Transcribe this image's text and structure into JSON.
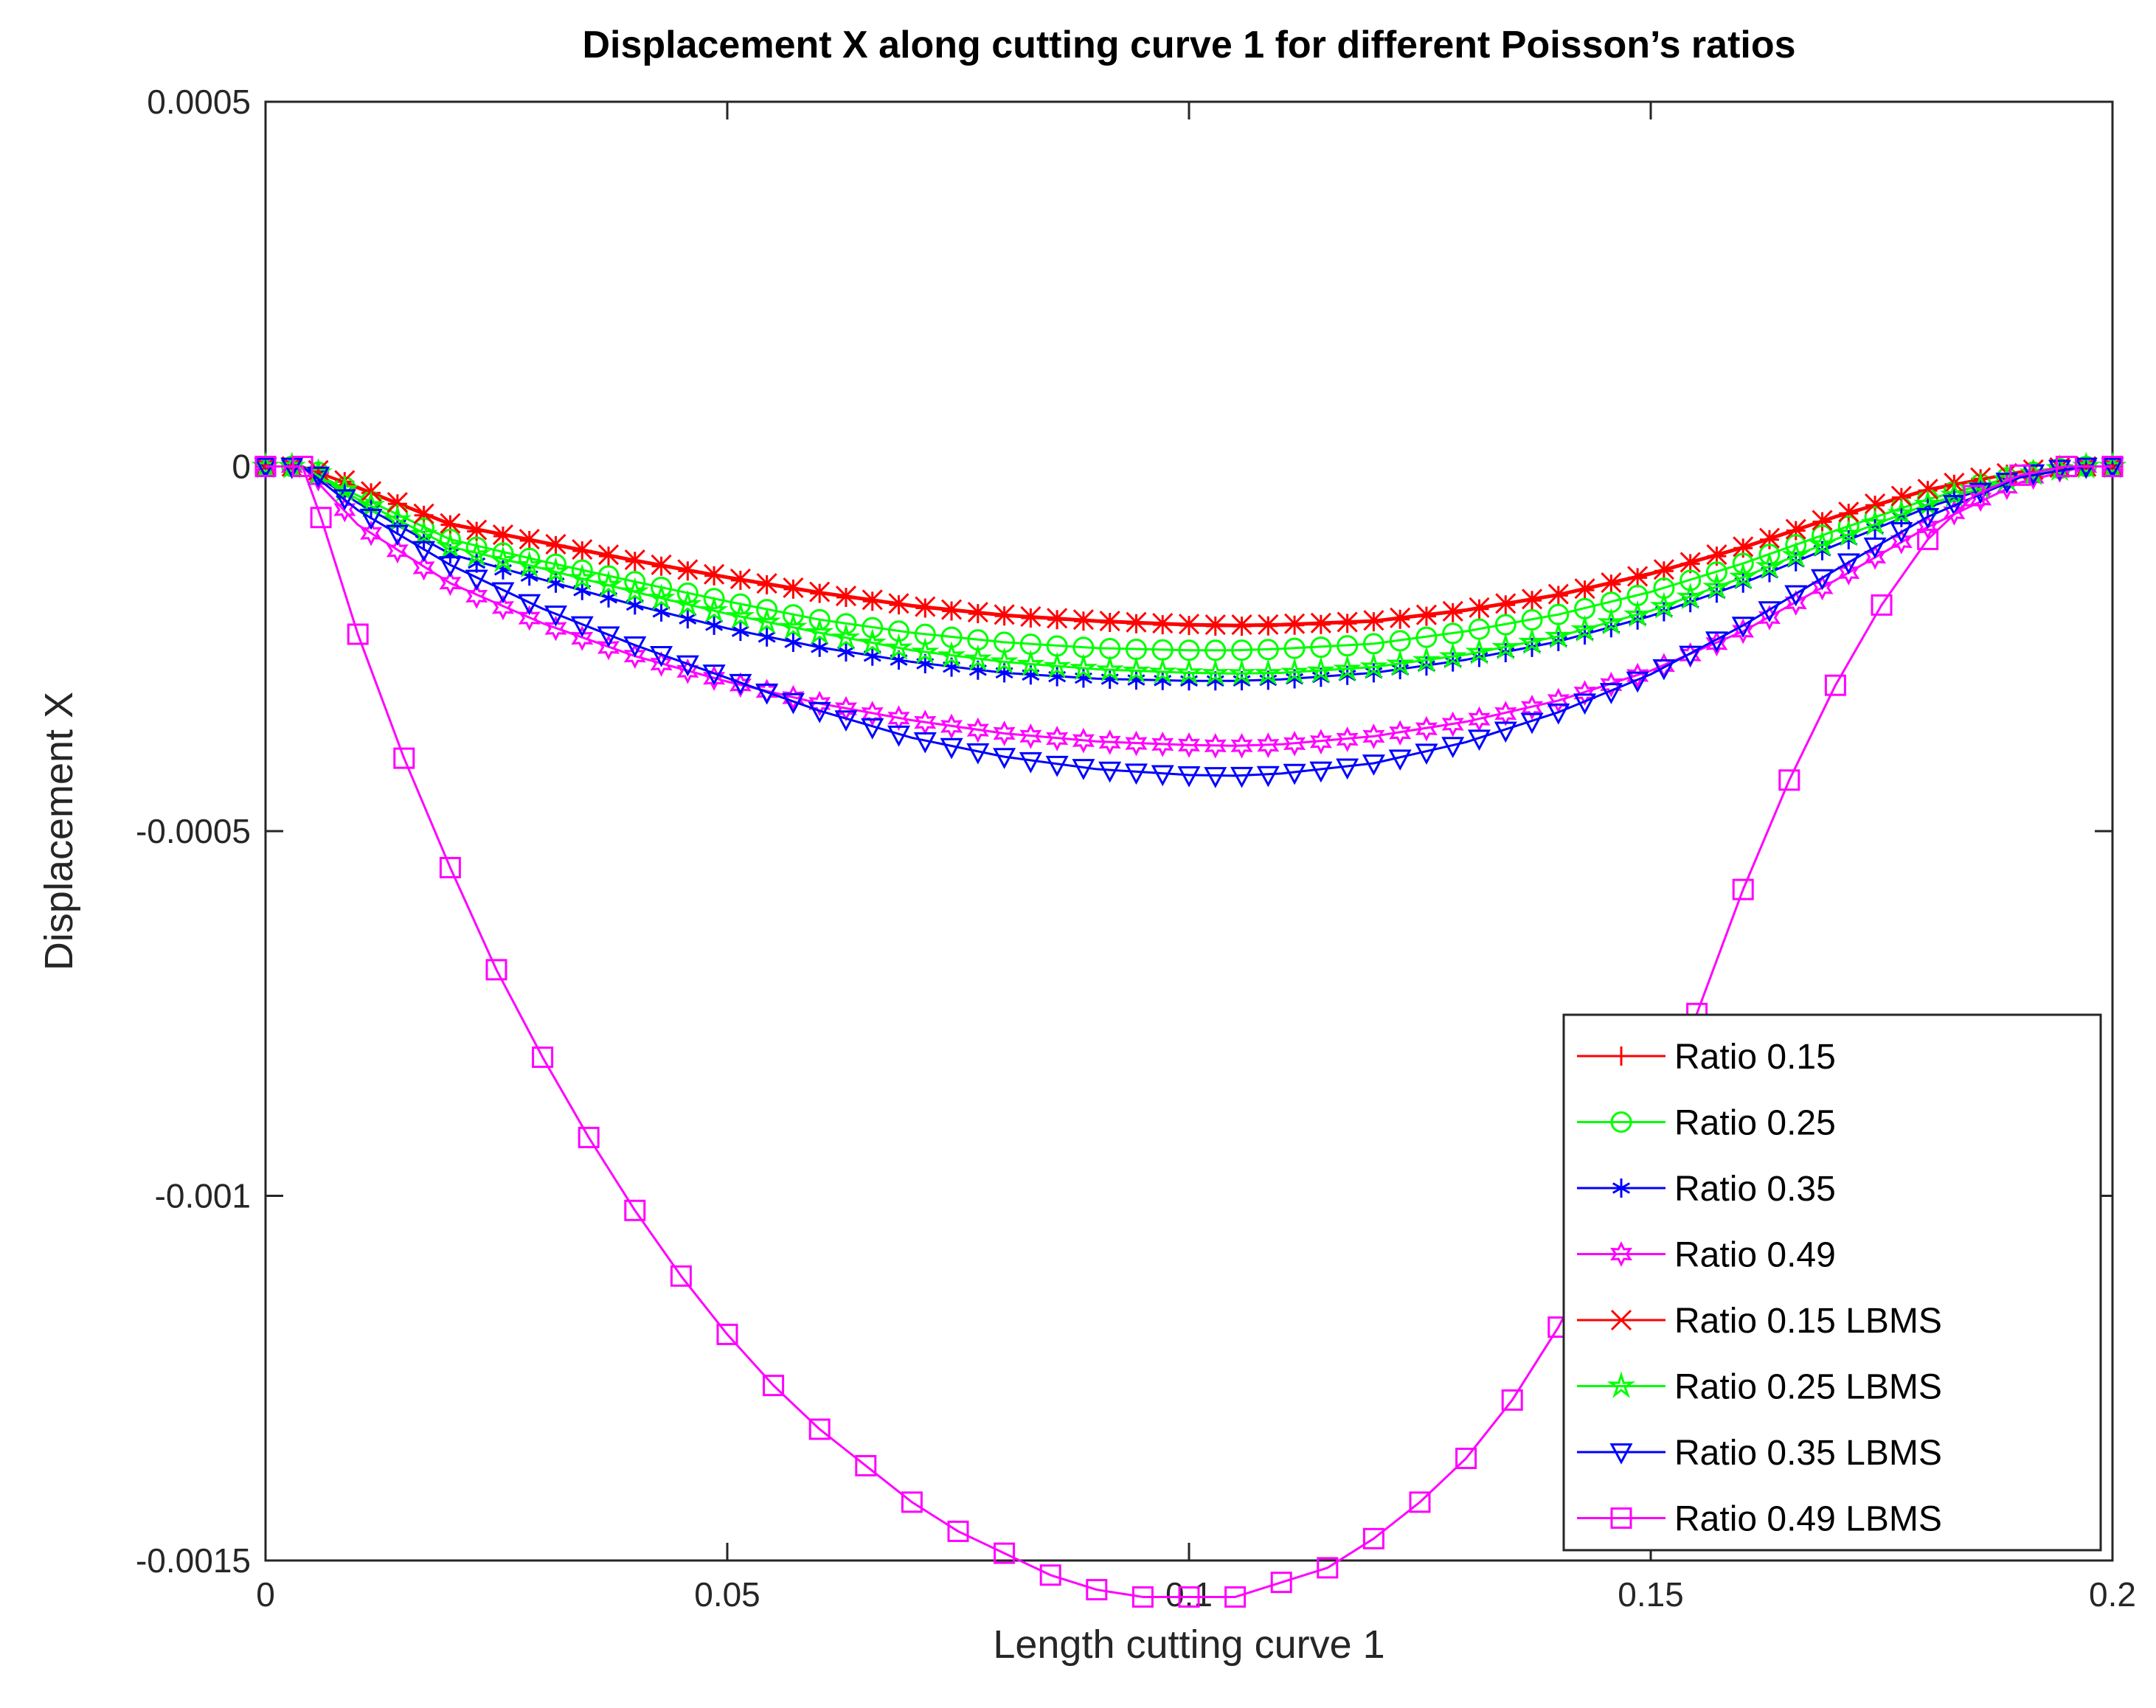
{
  "chart_data": {
    "type": "line",
    "title": "Displacement X along cutting curve 1 for different Poisson’s ratios",
    "xlabel": "Length cutting curve 1",
    "ylabel": "Displacement X",
    "xlim": [
      0,
      0.2
    ],
    "ylim": [
      -0.0015,
      0.0005
    ],
    "xticks": [
      0,
      0.05,
      0.1,
      0.15,
      0.2
    ],
    "xtick_labels": [
      "0",
      "0.05",
      "0.1",
      "0.15",
      "0.2"
    ],
    "yticks": [
      0.0005,
      0,
      -0.0005,
      -0.001,
      -0.0015
    ],
    "ytick_labels": [
      "0.0005",
      "0",
      "-0.0005",
      "-0.001",
      "-0.0015"
    ],
    "grid": false,
    "legend_position": "bottom-right",
    "series": [
      {
        "name": "Ratio 0.15",
        "color": "#ff0000",
        "marker": "plus",
        "x": [
          0,
          0.004,
          0.01,
          0.02,
          0.03,
          0.04,
          0.05,
          0.06,
          0.07,
          0.08,
          0.09,
          0.1,
          0.105,
          0.11,
          0.12,
          0.13,
          0.14,
          0.15,
          0.16,
          0.17,
          0.18,
          0.19,
          0.197,
          0.2
        ],
        "y": [
          0,
          0,
          -3e-05,
          -8e-05,
          -0.000105,
          -0.00013,
          -0.000153,
          -0.000174,
          -0.000192,
          -0.000205,
          -0.000213,
          -0.000218,
          -0.000219,
          -0.000218,
          -0.000213,
          -0.000198,
          -0.000177,
          -0.000148,
          -0.000112,
          -7e-05,
          -3.3e-05,
          -8e-06,
          0,
          0
        ]
      },
      {
        "name": "Ratio 0.25",
        "color": "#00ff00",
        "marker": "circle",
        "x": [
          0,
          0.004,
          0.01,
          0.02,
          0.03,
          0.04,
          0.05,
          0.06,
          0.07,
          0.08,
          0.09,
          0.1,
          0.105,
          0.11,
          0.12,
          0.13,
          0.14,
          0.15,
          0.16,
          0.17,
          0.18,
          0.19,
          0.197,
          0.2
        ],
        "y": [
          0,
          0,
          -4e-05,
          -0.0001,
          -0.00013,
          -0.000158,
          -0.000185,
          -0.00021,
          -0.000228,
          -0.000241,
          -0.000249,
          -0.000252,
          -0.000252,
          -0.00025,
          -0.000243,
          -0.000226,
          -0.000203,
          -0.000172,
          -0.000133,
          -8.8e-05,
          -4.5e-05,
          -1.2e-05,
          0,
          0
        ]
      },
      {
        "name": "Ratio 0.35",
        "color": "#0000ff",
        "marker": "asterisk",
        "x": [
          0,
          0.004,
          0.01,
          0.02,
          0.03,
          0.04,
          0.05,
          0.06,
          0.07,
          0.08,
          0.09,
          0.1,
          0.105,
          0.11,
          0.12,
          0.13,
          0.14,
          0.15,
          0.16,
          0.17,
          0.18,
          0.19,
          0.197,
          0.2
        ],
        "y": [
          0,
          0,
          -5e-05,
          -0.00012,
          -0.000155,
          -0.00019,
          -0.000222,
          -0.000248,
          -0.000268,
          -0.000283,
          -0.000291,
          -0.000294,
          -0.000294,
          -0.000292,
          -0.000283,
          -0.000265,
          -0.00024,
          -0.000205,
          -0.00016,
          -0.000108,
          -5.6e-05,
          -1.5e-05,
          0,
          0
        ]
      },
      {
        "name": "Ratio 0.49",
        "color": "#ff00ff",
        "marker": "hexagram",
        "x": [
          0,
          0.004,
          0.01,
          0.02,
          0.03,
          0.04,
          0.05,
          0.06,
          0.07,
          0.08,
          0.09,
          0.1,
          0.105,
          0.11,
          0.12,
          0.13,
          0.14,
          0.15,
          0.16,
          0.17,
          0.18,
          0.19,
          0.197,
          0.2
        ],
        "y": [
          0,
          0,
          -8e-05,
          -0.00016,
          -0.000215,
          -0.00026,
          -0.000295,
          -0.000325,
          -0.000348,
          -0.000366,
          -0.000377,
          -0.000382,
          -0.000383,
          -0.000381,
          -0.00037,
          -0.00035,
          -0.000321,
          -0.00028,
          -0.000226,
          -0.000156,
          -8.3e-05,
          -2.2e-05,
          0,
          0
        ]
      },
      {
        "name": "Ratio 0.15 LBMS",
        "color": "#ff0000",
        "marker": "x",
        "x": [
          0,
          0.004,
          0.01,
          0.02,
          0.03,
          0.04,
          0.05,
          0.06,
          0.07,
          0.08,
          0.09,
          0.1,
          0.105,
          0.11,
          0.12,
          0.13,
          0.14,
          0.15,
          0.16,
          0.17,
          0.18,
          0.19,
          0.197,
          0.2
        ],
        "y": [
          0,
          0,
          -2.8e-05,
          -7.8e-05,
          -0.000103,
          -0.000128,
          -0.000151,
          -0.000172,
          -0.00019,
          -0.000203,
          -0.000211,
          -0.000216,
          -0.000217,
          -0.000216,
          -0.000211,
          -0.000196,
          -0.000175,
          -0.000146,
          -0.00011,
          -6.8e-05,
          -3.1e-05,
          -7e-06,
          0,
          0
        ]
      },
      {
        "name": "Ratio 0.25 LBMS",
        "color": "#00ff00",
        "marker": "pentagram",
        "x": [
          0,
          0.004,
          0.01,
          0.02,
          0.03,
          0.04,
          0.05,
          0.06,
          0.07,
          0.08,
          0.09,
          0.1,
          0.105,
          0.11,
          0.12,
          0.13,
          0.14,
          0.15,
          0.16,
          0.17,
          0.18,
          0.19,
          0.197,
          0.2
        ],
        "y": [
          0,
          0,
          -4.5e-05,
          -0.00011,
          -0.00014,
          -0.000172,
          -0.000202,
          -0.000228,
          -0.000252,
          -0.000268,
          -0.000278,
          -0.000283,
          -0.000284,
          -0.000283,
          -0.000275,
          -0.000258,
          -0.000233,
          -0.000198,
          -0.000152,
          -0.0001,
          -5.2e-05,
          -1.4e-05,
          0,
          0
        ]
      },
      {
        "name": "Ratio 0.35 LBMS",
        "color": "#0000ff",
        "marker": "triangle-down",
        "x": [
          0,
          0.004,
          0.01,
          0.02,
          0.03,
          0.04,
          0.05,
          0.06,
          0.07,
          0.08,
          0.09,
          0.1,
          0.105,
          0.11,
          0.12,
          0.13,
          0.14,
          0.15,
          0.16,
          0.17,
          0.18,
          0.19,
          0.197,
          0.2
        ],
        "y": [
          0,
          0,
          -6e-05,
          -0.000135,
          -0.000195,
          -0.000245,
          -0.00029,
          -0.000335,
          -0.000372,
          -0.000398,
          -0.000415,
          -0.000423,
          -0.000424,
          -0.000421,
          -0.000407,
          -0.000378,
          -0.000337,
          -0.000285,
          -0.000218,
          -0.000142,
          -6.9e-05,
          -1.5e-05,
          0,
          0
        ]
      },
      {
        "name": "Ratio 0.49 LBMS",
        "color": "#ff00ff",
        "marker": "square",
        "x": [
          0,
          0.004,
          0.006,
          0.01,
          0.015,
          0.02,
          0.025,
          0.03,
          0.035,
          0.04,
          0.045,
          0.05,
          0.055,
          0.06,
          0.065,
          0.07,
          0.075,
          0.08,
          0.085,
          0.09,
          0.095,
          0.1,
          0.105,
          0.11,
          0.115,
          0.12,
          0.125,
          0.13,
          0.135,
          0.14,
          0.145,
          0.15,
          0.155,
          0.16,
          0.165,
          0.17,
          0.175,
          0.18,
          0.185,
          0.19,
          0.195,
          0.2
        ],
        "y": [
          0,
          0,
          -7e-05,
          -0.00023,
          -0.0004,
          -0.00055,
          -0.00069,
          -0.00081,
          -0.00092,
          -0.00102,
          -0.00111,
          -0.00119,
          -0.00126,
          -0.00132,
          -0.00137,
          -0.00142,
          -0.00146,
          -0.00149,
          -0.00152,
          -0.00154,
          -0.00155,
          -0.00155,
          -0.00155,
          -0.00153,
          -0.00151,
          -0.00147,
          -0.00142,
          -0.00136,
          -0.00128,
          -0.00118,
          -0.00106,
          -0.00092,
          -0.00075,
          -0.00058,
          -0.00043,
          -0.0003,
          -0.00019,
          -0.0001,
          -4e-05,
          -1.2e-05,
          0,
          0
        ]
      }
    ]
  }
}
